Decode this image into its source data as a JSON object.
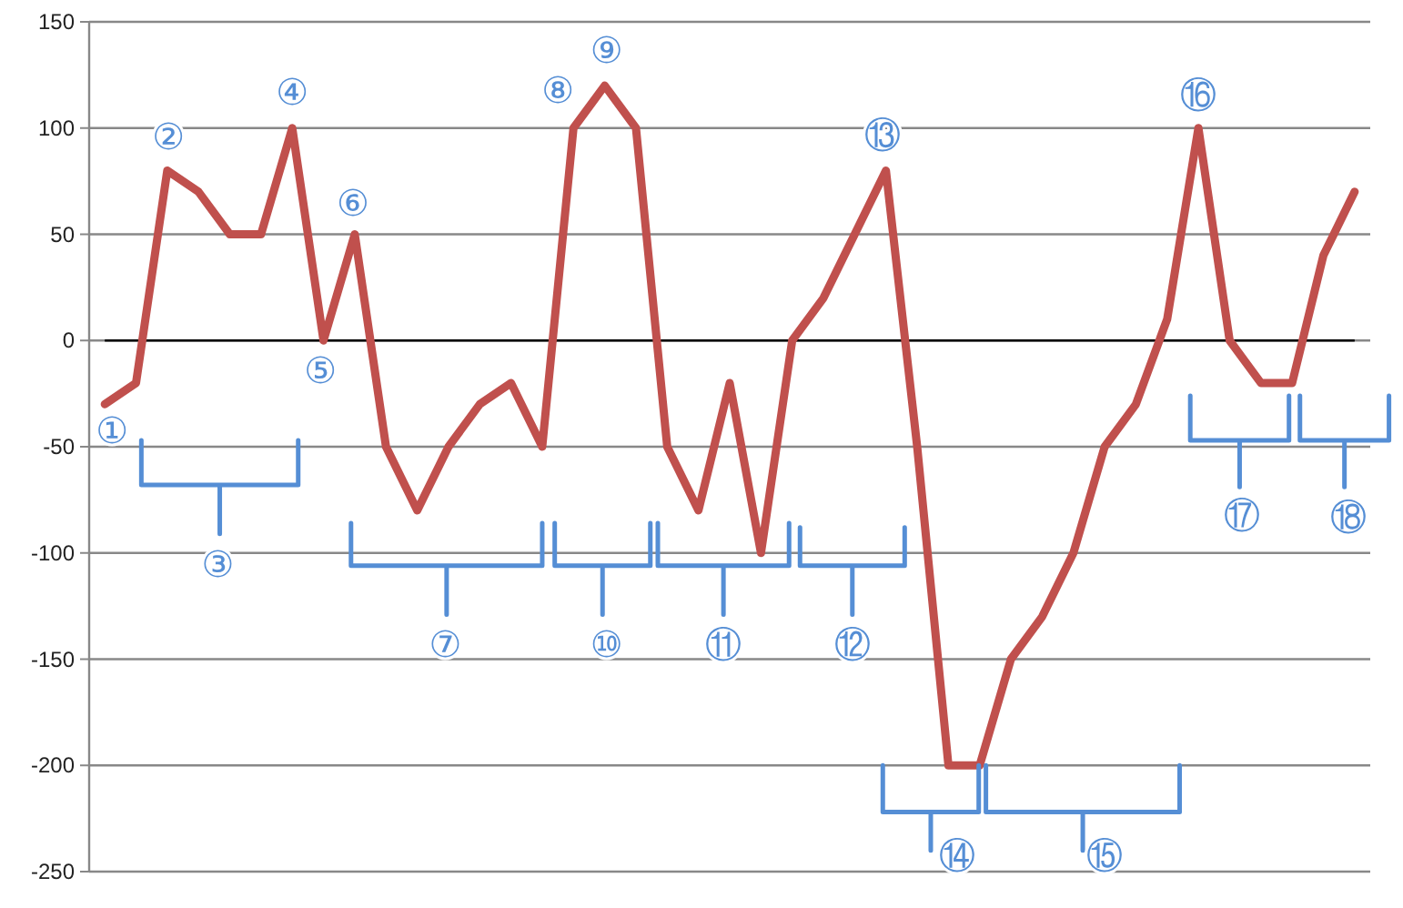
{
  "chart_data": {
    "type": "line",
    "categories": [
      null,
      null,
      null,
      null,
      null,
      null,
      null,
      null,
      null,
      null,
      null,
      null,
      null,
      null,
      null,
      null,
      null,
      null,
      null,
      null,
      null,
      null,
      null,
      null,
      null,
      null,
      null,
      null,
      null,
      null,
      null,
      null,
      null,
      null,
      null,
      null,
      null,
      null,
      null,
      null,
      null
    ],
    "series": [
      {
        "color": "#c0504d",
        "values": [
          -30,
          -20,
          80,
          70,
          50,
          50,
          100,
          0,
          50,
          -50,
          -80,
          -50,
          -30,
          -20,
          -50,
          100,
          120,
          100,
          -50,
          -80,
          -20,
          -100,
          0,
          20,
          50,
          80,
          -50,
          -200,
          -200,
          -150,
          -130,
          -100,
          -50,
          -30,
          10,
          100,
          0,
          -20,
          -20,
          40,
          70
        ]
      }
    ],
    "ylim": [
      -250,
      150
    ],
    "yticks": [
      -250,
      -200,
      -150,
      -100,
      -50,
      0,
      50,
      100,
      150
    ],
    "grid": "y",
    "tick_labels": "y",
    "marker": "none",
    "line_style": "solid",
    "annotations": [
      "①",
      "②",
      "③",
      "④",
      "⑤",
      "⑥",
      "⑦",
      "⑧",
      "⑨",
      "⑩",
      "⑪",
      "⑫",
      "⑬",
      "⑭",
      "⑮",
      "⑯",
      "⑰",
      "⑱"
    ]
  }
}
